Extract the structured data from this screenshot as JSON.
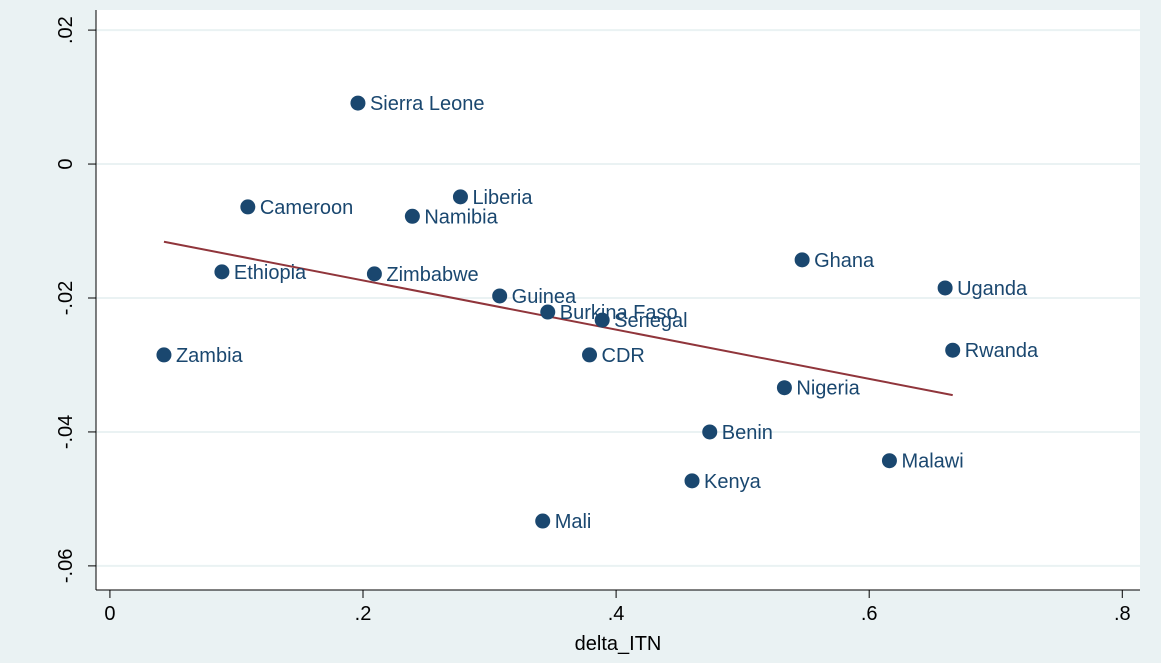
{
  "chart_data": {
    "type": "scatter",
    "x_label": "delta_ITN",
    "labels": [
      "Sierra Leone",
      "Cameroon",
      "Liberia",
      "Namibia",
      "Ethiopia",
      "Zimbabwe",
      "Guinea",
      "Burkina Faso",
      "Senegal",
      "CDR",
      "Zambia",
      "Ghana",
      "Uganda",
      "Rwanda",
      "Nigeria",
      "Benin",
      "Malawi",
      "Kenya",
      "Mali"
    ],
    "x": [
      0.196,
      0.109,
      0.277,
      0.239,
      0.0885,
      0.209,
      0.308,
      0.346,
      0.389,
      0.379,
      0.0427,
      0.547,
      0.66,
      0.666,
      0.533,
      0.474,
      0.616,
      0.46,
      0.342
    ],
    "values": [
      0.0091,
      -0.0064,
      -0.0049,
      -0.0078,
      -0.0161,
      -0.0164,
      -0.0197,
      -0.0221,
      -0.0233,
      -0.0285,
      -0.0285,
      -0.0143,
      -0.0185,
      -0.0278,
      -0.0334,
      -0.04,
      -0.0443,
      -0.0473,
      -0.0533
    ],
    "color": "#1a476f",
    "fit_line": {
      "x": [
        0.0427,
        0.666
      ],
      "values": [
        -0.0116,
        -0.0345
      ],
      "color": "#90353b"
    },
    "xlim": [
      -0.011,
      0.814
    ],
    "ylim": [
      -0.0636,
      0.023
    ],
    "xticks": [
      0,
      {
        "value": 0.2,
        "label": ".2"
      },
      {
        "value": 0.4,
        "label": ".4"
      },
      {
        "value": 0.6,
        "label": ".6"
      },
      {
        "value": 0.8,
        "label": ".8"
      }
    ],
    "yticks": [
      {
        "value": -0.06,
        "label": "-.06"
      },
      {
        "value": -0.04,
        "label": "-.04"
      },
      {
        "value": -0.02,
        "label": "-.02"
      },
      0,
      {
        "value": 0.02,
        "label": ".02"
      }
    ],
    "grid": true
  }
}
